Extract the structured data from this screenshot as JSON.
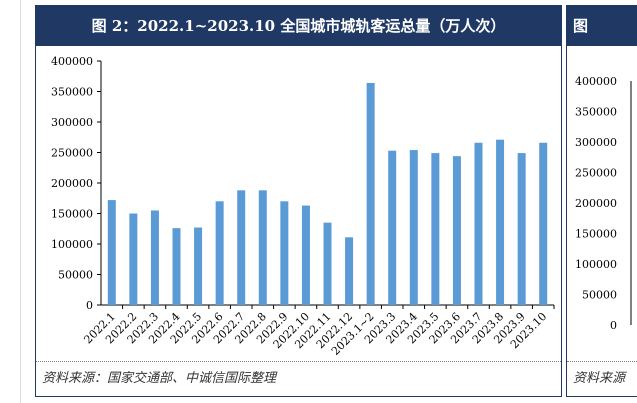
{
  "left_panel": {
    "title": "图 2：2022.1~2023.10 全国城市城轨客运总量（万人次）",
    "source": "资料来源：国家交通部、中诚信国际整理"
  },
  "right_panel": {
    "title": "图",
    "source": "资料来源"
  },
  "colors": {
    "header_bg": "#1f3864",
    "bar": "#5b9bd5"
  },
  "chart_data": [
    {
      "type": "bar",
      "title": "",
      "xlabel": "",
      "ylabel": "",
      "ylim": [
        0,
        400000
      ],
      "ytick_step": 50000,
      "grid": false,
      "categories": [
        "2022.1",
        "2022.2",
        "2022.3",
        "2022.4",
        "2022.5",
        "2022.6",
        "2022.7",
        "2022.8",
        "2022.9",
        "2022.10",
        "2022.11",
        "2022.12",
        "2023.1~2",
        "2023.3",
        "2023.4",
        "2023.5",
        "2023.6",
        "2023.7",
        "2023.8",
        "2023.9",
        "2023.10"
      ],
      "values": [
        172000,
        150000,
        155000,
        126000,
        127000,
        170000,
        188000,
        188000,
        170000,
        163000,
        135000,
        111000,
        364000,
        253000,
        254000,
        249000,
        244000,
        266000,
        271000,
        249000,
        266000
      ]
    },
    {
      "type": "bar",
      "title": "",
      "ylim": [
        0,
        400000
      ],
      "ytick_step": 50000,
      "categories": [],
      "values": []
    }
  ]
}
